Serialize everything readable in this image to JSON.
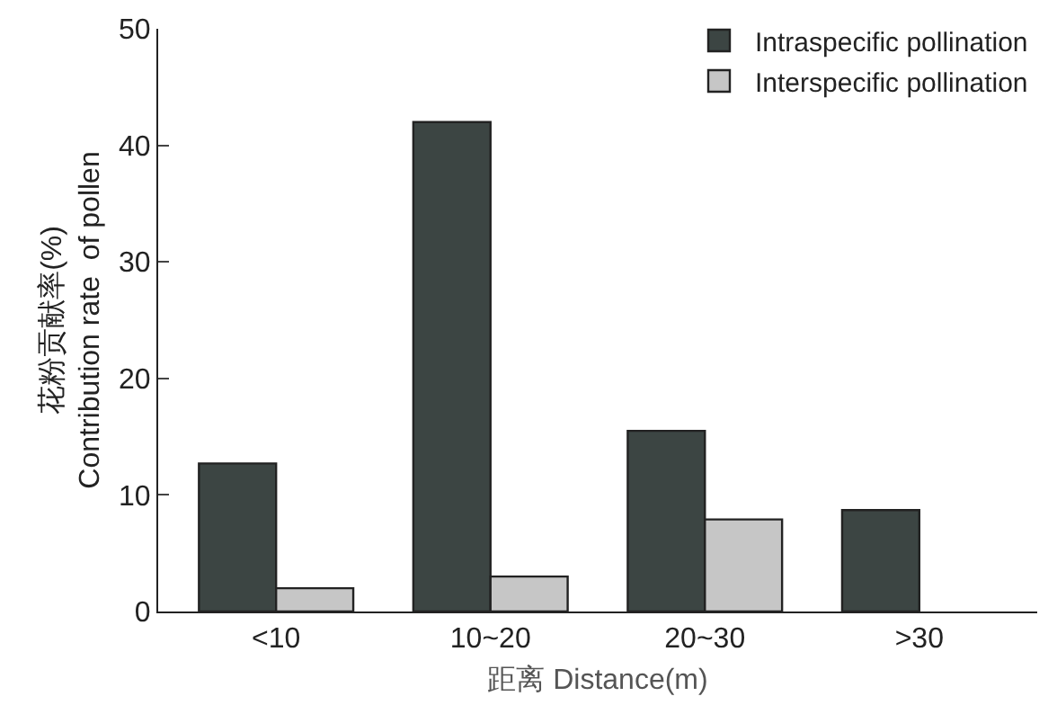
{
  "chart_data": {
    "type": "bar",
    "xlabel": "距离 Distance(m)",
    "ylabel": "花粉贡献率(%)\nContribution rate  of pollen",
    "categories": [
      "<10",
      "10~20",
      "20~30",
      ">30"
    ],
    "series": [
      {
        "name": "Intraspecific pollination",
        "color": "#3c4543",
        "values": [
          12.7,
          42.0,
          15.5,
          8.7
        ]
      },
      {
        "name": "Interspecific pollination",
        "color": "#c6c6c6",
        "values": [
          2.0,
          3.0,
          7.9,
          null
        ]
      }
    ],
    "ylim": [
      0,
      50
    ],
    "yticks": [
      0,
      10,
      20,
      30,
      40,
      50
    ],
    "legend": "top right"
  }
}
